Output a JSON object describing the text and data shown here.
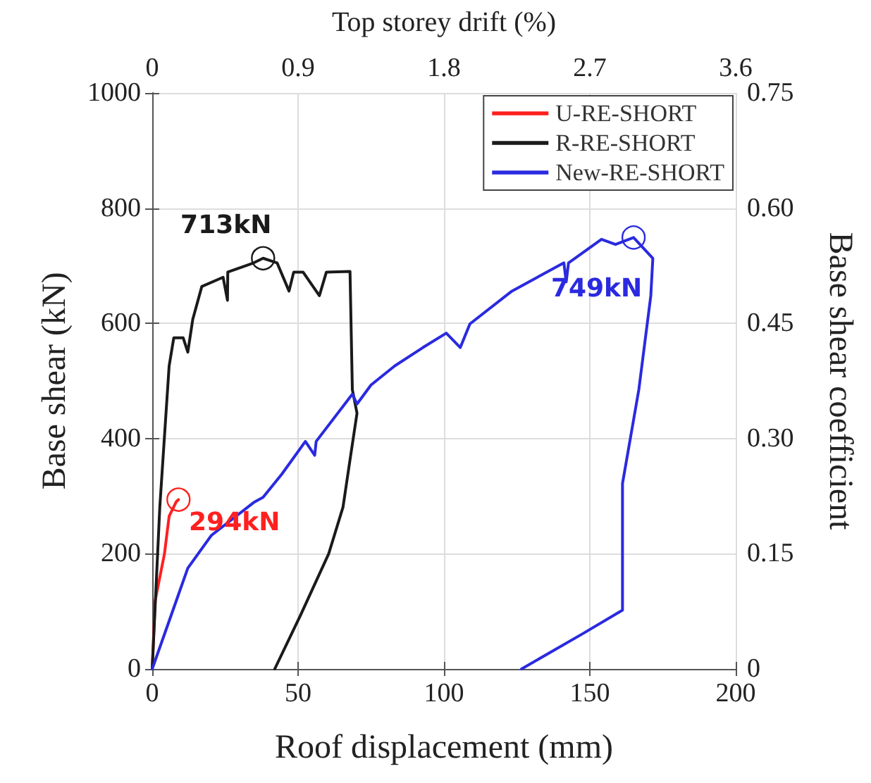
{
  "chart_data": {
    "type": "line",
    "xlabel": "Roof displacement (mm)",
    "ylabel": "Base shear (kN)",
    "x2label": "Top storey drift (%)",
    "y2label": "Base shear coefficient",
    "xlim": [
      0,
      200
    ],
    "xticks": [
      0,
      50,
      100,
      150,
      200
    ],
    "ylim": [
      0,
      1000
    ],
    "yticks": [
      0,
      200,
      400,
      600,
      800,
      1000
    ],
    "x2lim": [
      0,
      3.6
    ],
    "x2ticks": [
      0,
      0.9,
      1.8,
      2.7,
      3.6
    ],
    "y2lim": [
      0,
      0.75
    ],
    "y2ticks": [
      0,
      {
        "value": 0.15,
        "label": "0.15"
      },
      {
        "value": 0.3,
        "label": "0.30"
      },
      {
        "value": 0.45,
        "label": "0.45"
      },
      {
        "value": 0.6,
        "label": "0.60"
      },
      {
        "value": 0.75,
        "label": "0.75"
      }
    ],
    "grid": true,
    "legend": "top right",
    "marker": "none",
    "line_style": "solid",
    "series": [
      {
        "name": "U-RE-SHORT",
        "color": "#ff2020",
        "x": [
          0,
          1,
          4.2,
          5.8,
          8.2,
          9
        ],
        "values": [
          0,
          118,
          200,
          265,
          290,
          294
        ]
      },
      {
        "name": "R-RE-SHORT",
        "color": "#1a1a1a",
        "x": [
          0,
          2.6,
          5.8,
          7.4,
          10.6,
          12.2,
          13.9,
          17,
          24.3,
          25.8,
          25.9,
          34.8,
          38,
          42.8,
          46.9,
          48.5,
          51.7,
          57.3,
          59.7,
          67.8,
          68.6,
          70.2,
          67.8,
          65.4,
          60.5,
          50.9,
          42
        ],
        "values": [
          0,
          281,
          526,
          575,
          575,
          550,
          607,
          664,
          680,
          640,
          689,
          705,
          713,
          705,
          656,
          689,
          689,
          648,
          689,
          690,
          485,
          444,
          363,
          281,
          200,
          94,
          0
        ]
      },
      {
        "name": "New-RE-SHORT",
        "color": "#2a2ae0",
        "x": [
          0,
          12.2,
          20.3,
          34.8,
          38,
          44.4,
          52.5,
          55.7,
          56.2,
          68.6,
          70.2,
          75,
          83.1,
          92.8,
          100.8,
          105.6,
          108.9,
          123.3,
          141.1,
          141.9,
          142.7,
          154,
          158.8,
          165,
          171.6,
          170.9,
          166.8,
          161.2,
          161.2,
          147.5,
          126.6
        ],
        "values": [
          0,
          175,
          232,
          289,
          298,
          338,
          395,
          371,
          395,
          477,
          460,
          493,
          526,
          558,
          583,
          558,
          599,
          656,
          705,
          672,
          705,
          746,
          737,
          749,
          713,
          648,
          485,
          322,
          102,
          61,
          0
        ]
      }
    ],
    "annotations": [
      {
        "text": "294kN",
        "x": 9,
        "y": 294
      },
      {
        "text": "713kN",
        "x": 38,
        "y": 713
      },
      {
        "text": "749kN",
        "x": 165,
        "y": 749
      }
    ]
  }
}
